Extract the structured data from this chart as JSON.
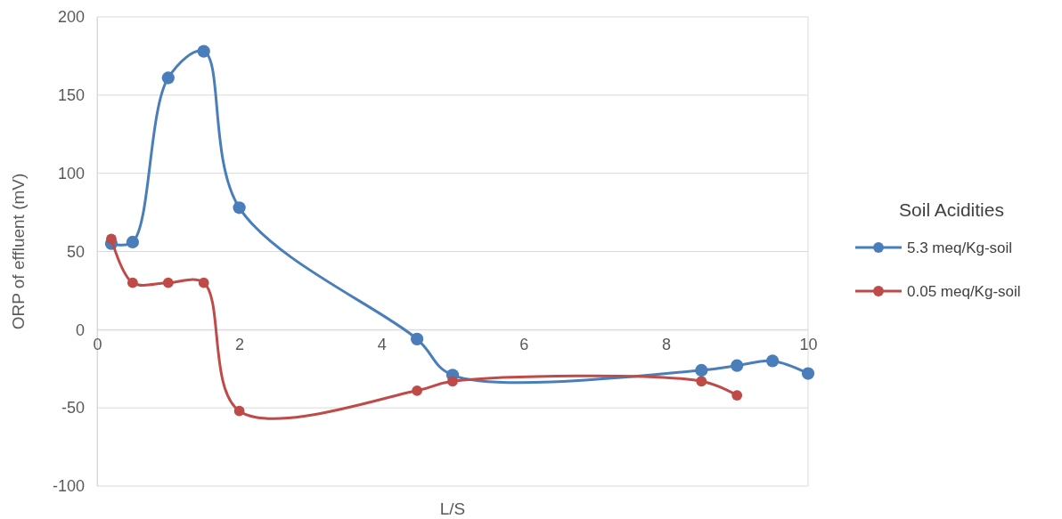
{
  "chart_data": {
    "type": "line",
    "xlabel": "L/S",
    "ylabel": "ORP of effluent (mV)",
    "legend_title": "Soil Acidities",
    "xlim": [
      0,
      10
    ],
    "xticks": [
      0,
      2,
      4,
      6,
      8,
      10
    ],
    "ylim": [
      -100,
      200
    ],
    "yticks": [
      -100,
      -50,
      0,
      50,
      100,
      150,
      200
    ],
    "grid": "y",
    "legend": "right",
    "marker": "circle",
    "line_style": "solid",
    "series": [
      {
        "name": "5.3 meq/Kg-soil",
        "color": "#4a7ebb",
        "x": [
          0.2,
          0.5,
          1,
          1.5,
          2,
          4.5,
          5,
          8.5,
          9,
          9.5,
          10
        ],
        "values": [
          55,
          56,
          161,
          178,
          78,
          -6,
          -29,
          -26,
          -23,
          -20,
          -28
        ]
      },
      {
        "name": "0.05 meq/Kg-soil",
        "color": "#be4b48",
        "x": [
          0.2,
          0.5,
          1,
          1.5,
          2,
          4.5,
          5,
          8.5,
          9
        ],
        "values": [
          58,
          30,
          30,
          30,
          -52,
          -39,
          -33,
          -33,
          -42
        ]
      }
    ]
  }
}
